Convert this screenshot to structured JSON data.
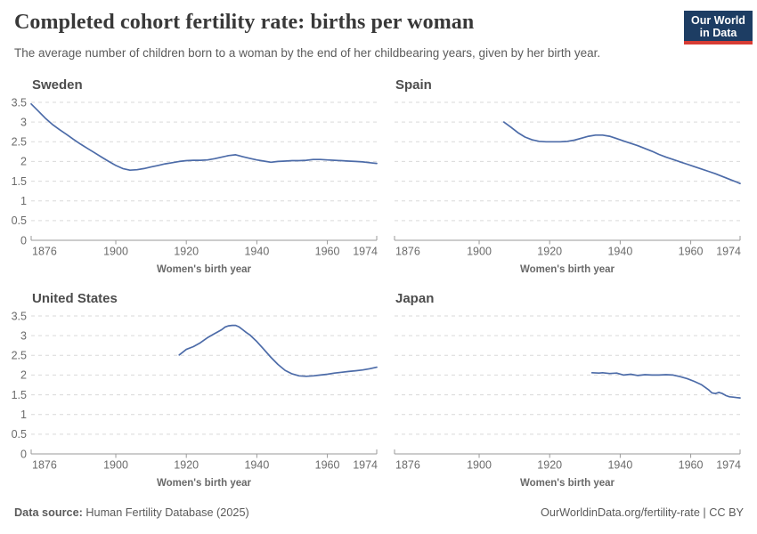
{
  "header": {
    "title": "Completed cohort fertility rate: births per woman",
    "subtitle": "The average number of children born to a woman by the end of her childbearing years, given by her birth year.",
    "logo": {
      "line1": "Our World",
      "line2": "in Data",
      "bg_color": "#1d3d63",
      "accent_color": "#d73c34"
    }
  },
  "footer": {
    "datasource_label": "Data source:",
    "datasource_value": " Human Fertility Database (2025)",
    "link": "OurWorldinData.org/fertility-rate | CC BY"
  },
  "colors": {
    "line": "#4c6ba8",
    "gridline": "#d9d9d9",
    "axis": "#9a9a9a",
    "tick_label": "#6b6b6b",
    "facet_title": "#4d4d4d",
    "axis_title": "#696969"
  },
  "chart_data": [
    {
      "type": "line",
      "title": "Sweden",
      "xlabel": "Women's birth year",
      "xlim": [
        1876,
        1974
      ],
      "ylim": [
        0,
        3.5
      ],
      "x_ticks": [
        1876,
        1900,
        1920,
        1940,
        1960,
        1974
      ],
      "y_ticks": [
        0,
        0.5,
        1,
        1.5,
        2,
        2.5,
        3,
        3.5
      ],
      "show_y_labels": true,
      "grid": true,
      "line_color": "#4c6ba8",
      "series": [
        {
          "name": "Sweden",
          "points": [
            [
              1876,
              3.46
            ],
            [
              1878,
              3.28
            ],
            [
              1880,
              3.1
            ],
            [
              1882,
              2.94
            ],
            [
              1884,
              2.81
            ],
            [
              1886,
              2.69
            ],
            [
              1888,
              2.56
            ],
            [
              1890,
              2.44
            ],
            [
              1892,
              2.33
            ],
            [
              1894,
              2.22
            ],
            [
              1896,
              2.11
            ],
            [
              1898,
              2.0
            ],
            [
              1900,
              1.9
            ],
            [
              1902,
              1.82
            ],
            [
              1904,
              1.78
            ],
            [
              1906,
              1.79
            ],
            [
              1908,
              1.82
            ],
            [
              1910,
              1.86
            ],
            [
              1912,
              1.9
            ],
            [
              1914,
              1.94
            ],
            [
              1916,
              1.97
            ],
            [
              1918,
              2.0
            ],
            [
              1920,
              2.02
            ],
            [
              1922,
              2.03
            ],
            [
              1924,
              2.03
            ],
            [
              1926,
              2.04
            ],
            [
              1928,
              2.07
            ],
            [
              1930,
              2.11
            ],
            [
              1932,
              2.15
            ],
            [
              1934,
              2.17
            ],
            [
              1936,
              2.12
            ],
            [
              1938,
              2.08
            ],
            [
              1940,
              2.04
            ],
            [
              1942,
              2.01
            ],
            [
              1944,
              1.98
            ],
            [
              1946,
              2.0
            ],
            [
              1948,
              2.01
            ],
            [
              1950,
              2.02
            ],
            [
              1952,
              2.02
            ],
            [
              1954,
              2.03
            ],
            [
              1956,
              2.05
            ],
            [
              1958,
              2.05
            ],
            [
              1960,
              2.04
            ],
            [
              1962,
              2.03
            ],
            [
              1964,
              2.02
            ],
            [
              1966,
              2.01
            ],
            [
              1968,
              2.0
            ],
            [
              1970,
              1.99
            ],
            [
              1972,
              1.97
            ],
            [
              1974,
              1.95
            ]
          ]
        }
      ]
    },
    {
      "type": "line",
      "title": "Spain",
      "xlabel": "Women's birth year",
      "xlim": [
        1876,
        1974
      ],
      "ylim": [
        0,
        3.5
      ],
      "x_ticks": [
        1876,
        1900,
        1920,
        1940,
        1960,
        1974
      ],
      "y_ticks": [
        0,
        0.5,
        1,
        1.5,
        2,
        2.5,
        3,
        3.5
      ],
      "show_y_labels": false,
      "grid": true,
      "line_color": "#4c6ba8",
      "series": [
        {
          "name": "Spain",
          "points": [
            [
              1907,
              3.0
            ],
            [
              1909,
              2.87
            ],
            [
              1911,
              2.73
            ],
            [
              1913,
              2.62
            ],
            [
              1915,
              2.55
            ],
            [
              1917,
              2.51
            ],
            [
              1919,
              2.5
            ],
            [
              1921,
              2.5
            ],
            [
              1923,
              2.5
            ],
            [
              1925,
              2.51
            ],
            [
              1927,
              2.54
            ],
            [
              1929,
              2.59
            ],
            [
              1931,
              2.64
            ],
            [
              1933,
              2.67
            ],
            [
              1935,
              2.67
            ],
            [
              1937,
              2.64
            ],
            [
              1939,
              2.58
            ],
            [
              1941,
              2.52
            ],
            [
              1943,
              2.46
            ],
            [
              1945,
              2.4
            ],
            [
              1947,
              2.33
            ],
            [
              1949,
              2.26
            ],
            [
              1951,
              2.18
            ],
            [
              1953,
              2.11
            ],
            [
              1955,
              2.05
            ],
            [
              1957,
              1.99
            ],
            [
              1959,
              1.93
            ],
            [
              1961,
              1.87
            ],
            [
              1963,
              1.81
            ],
            [
              1965,
              1.75
            ],
            [
              1967,
              1.69
            ],
            [
              1969,
              1.62
            ],
            [
              1971,
              1.55
            ],
            [
              1973,
              1.48
            ],
            [
              1974,
              1.44
            ]
          ]
        }
      ]
    },
    {
      "type": "line",
      "title": "United States",
      "xlabel": "Women's birth year",
      "xlim": [
        1876,
        1974
      ],
      "ylim": [
        0,
        3.5
      ],
      "x_ticks": [
        1876,
        1900,
        1920,
        1940,
        1960,
        1974
      ],
      "y_ticks": [
        0,
        0.5,
        1,
        1.5,
        2,
        2.5,
        3,
        3.5
      ],
      "show_y_labels": true,
      "grid": true,
      "line_color": "#4c6ba8",
      "series": [
        {
          "name": "United States",
          "points": [
            [
              1918,
              2.51
            ],
            [
              1920,
              2.65
            ],
            [
              1922,
              2.72
            ],
            [
              1924,
              2.82
            ],
            [
              1926,
              2.95
            ],
            [
              1928,
              3.05
            ],
            [
              1930,
              3.15
            ],
            [
              1931,
              3.22
            ],
            [
              1932,
              3.25
            ],
            [
              1933,
              3.26
            ],
            [
              1934,
              3.26
            ],
            [
              1935,
              3.22
            ],
            [
              1936,
              3.15
            ],
            [
              1937,
              3.08
            ],
            [
              1938,
              3.02
            ],
            [
              1940,
              2.85
            ],
            [
              1942,
              2.65
            ],
            [
              1944,
              2.45
            ],
            [
              1946,
              2.27
            ],
            [
              1948,
              2.12
            ],
            [
              1950,
              2.03
            ],
            [
              1952,
              1.98
            ],
            [
              1954,
              1.97
            ],
            [
              1956,
              1.98
            ],
            [
              1958,
              2.0
            ],
            [
              1960,
              2.02
            ],
            [
              1962,
              2.05
            ],
            [
              1964,
              2.07
            ],
            [
              1966,
              2.09
            ],
            [
              1968,
              2.11
            ],
            [
              1970,
              2.13
            ],
            [
              1972,
              2.16
            ],
            [
              1974,
              2.2
            ]
          ]
        }
      ]
    },
    {
      "type": "line",
      "title": "Japan",
      "xlabel": "Women's birth year",
      "xlim": [
        1876,
        1974
      ],
      "ylim": [
        0,
        3.5
      ],
      "x_ticks": [
        1876,
        1900,
        1920,
        1940,
        1960,
        1974
      ],
      "y_ticks": [
        0,
        0.5,
        1,
        1.5,
        2,
        2.5,
        3,
        3.5
      ],
      "show_y_labels": false,
      "grid": true,
      "line_color": "#4c6ba8",
      "series": [
        {
          "name": "Japan",
          "points": [
            [
              1932,
              2.06
            ],
            [
              1934,
              2.05
            ],
            [
              1935,
              2.06
            ],
            [
              1937,
              2.04
            ],
            [
              1939,
              2.05
            ],
            [
              1941,
              2.0
            ],
            [
              1943,
              2.02
            ],
            [
              1945,
              1.99
            ],
            [
              1947,
              2.01
            ],
            [
              1949,
              2.0
            ],
            [
              1951,
              2.0
            ],
            [
              1953,
              2.01
            ],
            [
              1955,
              2.0
            ],
            [
              1957,
              1.96
            ],
            [
              1959,
              1.91
            ],
            [
              1961,
              1.84
            ],
            [
              1963,
              1.76
            ],
            [
              1965,
              1.63
            ],
            [
              1966,
              1.55
            ],
            [
              1967,
              1.53
            ],
            [
              1968,
              1.56
            ],
            [
              1969,
              1.53
            ],
            [
              1970,
              1.48
            ],
            [
              1971,
              1.45
            ],
            [
              1972,
              1.44
            ],
            [
              1973,
              1.43
            ],
            [
              1974,
              1.42
            ]
          ]
        }
      ]
    }
  ]
}
